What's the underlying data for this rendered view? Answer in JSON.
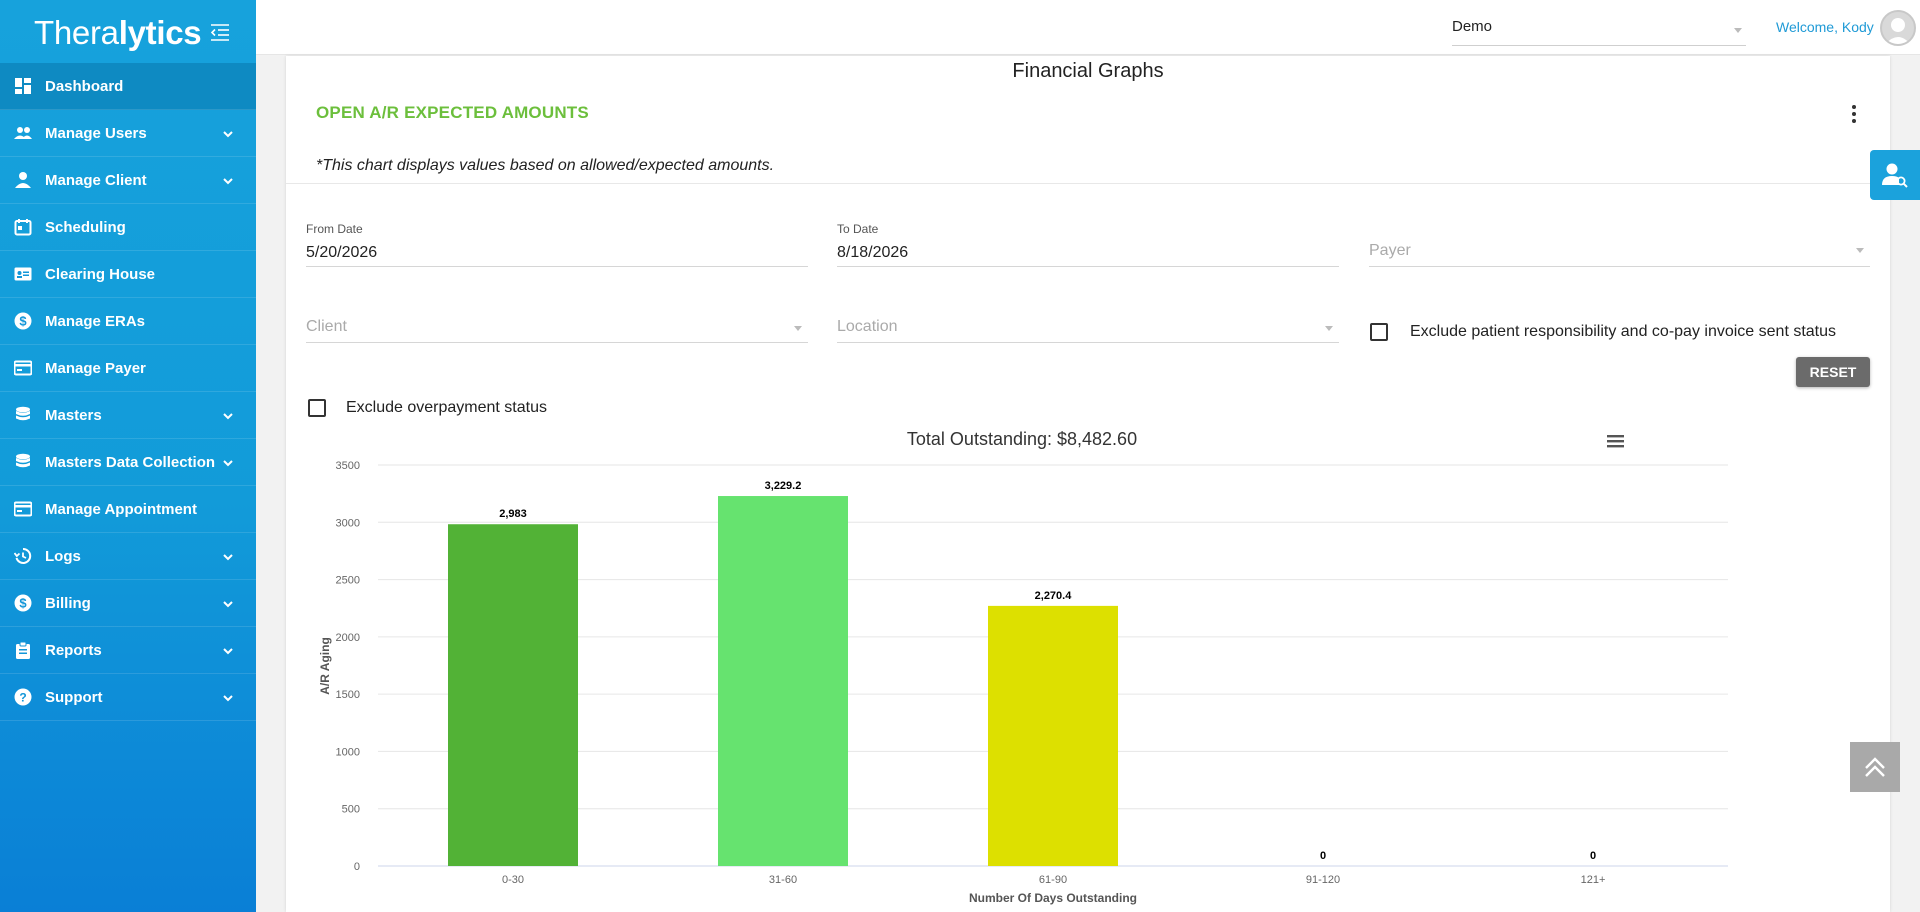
{
  "sidebar": {
    "logo_light": "Thera",
    "logo_bold": "lytics",
    "items": [
      {
        "label": "Dashboard",
        "icon": "dashboard-icon",
        "has_submenu": false,
        "active": true
      },
      {
        "label": "Manage Users",
        "icon": "users-icon",
        "has_submenu": true
      },
      {
        "label": "Manage Client",
        "icon": "person-icon",
        "has_submenu": true
      },
      {
        "label": "Scheduling",
        "icon": "calendar-icon",
        "has_submenu": false
      },
      {
        "label": "Clearing House",
        "icon": "id-card-icon",
        "has_submenu": false
      },
      {
        "label": "Manage ERAs",
        "icon": "dollar-circle-icon",
        "has_submenu": false
      },
      {
        "label": "Manage Payer",
        "icon": "payment-card-icon",
        "has_submenu": false
      },
      {
        "label": "Masters",
        "icon": "database-icon",
        "has_submenu": true
      },
      {
        "label": "Masters Data Collection",
        "icon": "database-icon",
        "has_submenu": true
      },
      {
        "label": "Manage Appointment",
        "icon": "payment-card-icon",
        "has_submenu": false
      },
      {
        "label": "Logs",
        "icon": "history-icon",
        "has_submenu": true
      },
      {
        "label": "Billing",
        "icon": "dollar-circle-icon",
        "has_submenu": true
      },
      {
        "label": "Reports",
        "icon": "clipboard-icon",
        "has_submenu": true
      },
      {
        "label": "Support",
        "icon": "help-circle-icon",
        "has_submenu": true
      }
    ]
  },
  "topbar": {
    "org_value": "Demo",
    "welcome": "Welcome, Kody"
  },
  "main": {
    "page_title": "Financial Graphs",
    "section_title": "OPEN A/R EXPECTED AMOUNTS",
    "note": "*This chart displays values based on allowed/expected amounts.",
    "filters": {
      "from_date_label": "From Date",
      "from_date": "5/20/2026",
      "to_date_label": "To Date",
      "to_date": "8/18/2026",
      "payer_placeholder": "Payer",
      "client_placeholder": "Client",
      "location_placeholder": "Location",
      "exclude_patient_label": "Exclude patient responsibility and co-pay invoice sent status",
      "exclude_overpayment_label": "Exclude overpayment status",
      "reset_label": "RESET"
    }
  },
  "colors": {
    "accent": "#1ba2dc",
    "section_title": "#6cbf3c"
  },
  "chart_data": {
    "type": "bar",
    "title": "Total Outstanding: $8,482.60",
    "xlabel": "Number Of Days Outstanding",
    "ylabel": "A/R Aging",
    "categories": [
      "0-30",
      "31-60",
      "61-90",
      "91-120",
      "121+"
    ],
    "values": [
      2983,
      3229.2,
      2270.4,
      0,
      0
    ],
    "data_labels": [
      "2,983",
      "3,229.2",
      "2,270.4",
      "0",
      "0"
    ],
    "bar_colors": [
      "#52b236",
      "#66e36f",
      "#dde000",
      "#52b236",
      "#52b236"
    ],
    "ylim": [
      0,
      3500
    ],
    "yticks": [
      0,
      500,
      1000,
      1500,
      2000,
      2500,
      3000,
      3500
    ],
    "grid": true,
    "legend": false
  }
}
